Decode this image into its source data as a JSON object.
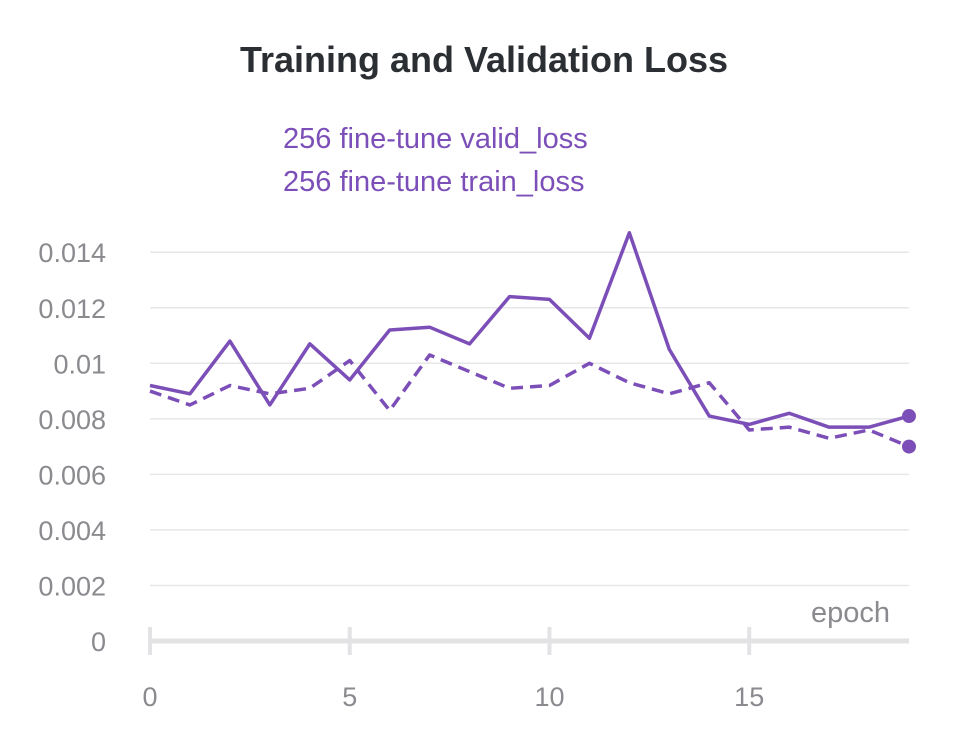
{
  "chart_data": {
    "type": "line",
    "title": "Training and Validation Loss",
    "xlabel": "epoch",
    "ylabel": "",
    "xlim": [
      0,
      19
    ],
    "ylim": [
      0,
      0.0148
    ],
    "x_ticks": [
      "0",
      "5",
      "10",
      "15"
    ],
    "y_ticks": [
      "0",
      "0.002",
      "0.004",
      "0.006",
      "0.008",
      "0.01",
      "0.012",
      "0.014"
    ],
    "grid": true,
    "legend_placement": "top-left",
    "x": [
      0,
      1,
      2,
      3,
      4,
      5,
      6,
      7,
      8,
      9,
      10,
      11,
      12,
      13,
      14,
      15,
      16,
      17,
      18,
      19
    ],
    "series": [
      {
        "name": "256 fine-tune valid_loss",
        "style": "solid",
        "color": "#7c4fb8",
        "values": [
          0.0092,
          0.0089,
          0.0108,
          0.0085,
          0.0107,
          0.0094,
          0.0112,
          0.0113,
          0.0107,
          0.0124,
          0.0123,
          0.0109,
          0.0147,
          0.0105,
          0.0081,
          0.0078,
          0.0082,
          0.0077,
          0.0077,
          0.0081
        ]
      },
      {
        "name": "256 fine-tune train_loss",
        "style": "dashed",
        "color": "#7c4fb8",
        "values": [
          0.009,
          0.0085,
          0.0092,
          0.0089,
          0.0091,
          0.0101,
          0.0083,
          0.0103,
          0.0097,
          0.0091,
          0.0092,
          0.01,
          0.0093,
          0.0089,
          0.0093,
          0.0076,
          0.0077,
          0.0073,
          0.0076,
          0.007
        ]
      }
    ]
  }
}
